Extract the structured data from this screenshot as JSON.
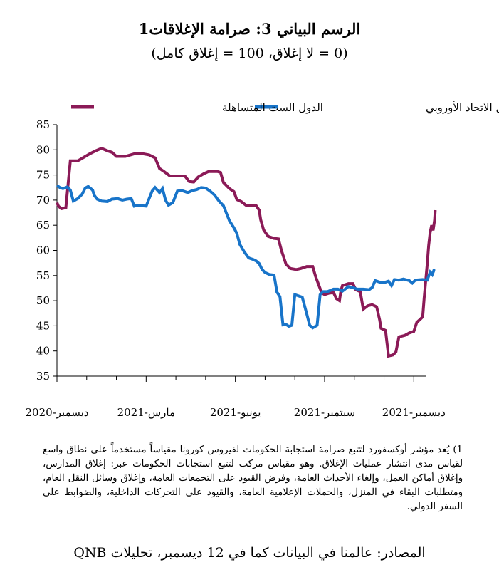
{
  "header": {
    "title": "الرسم البياني 3: صرامة الإغلاقات1",
    "subtitle": "(0 = لا إغلاق، 100 = إغلاق كامل)"
  },
  "chart_data": {
    "type": "line",
    "y_ticks": [
      "85",
      "80",
      "75",
      "70",
      "65",
      "60",
      "55",
      "50",
      "45",
      "40",
      "35"
    ],
    "ylim": [
      35,
      85
    ],
    "x_tick_labels": [
      "ديسمبر-2020",
      "مارس-2021",
      "يونيو-2021",
      "سبتمبر-2021",
      "ديسمبر-2021"
    ],
    "x_tick_months": [
      0,
      3,
      6,
      9,
      12
    ],
    "x_range_months": [
      0,
      12.4
    ],
    "grid": false,
    "legend_position": "top",
    "series": [
      {
        "name": "الدول الست المتساهلة",
        "color": "#8b1a57",
        "points": [
          [
            0,
            69.5
          ],
          [
            0.05,
            68.8
          ],
          [
            0.15,
            68.3
          ],
          [
            0.3,
            68.5
          ],
          [
            0.45,
            77.8
          ],
          [
            0.7,
            77.8
          ],
          [
            0.9,
            78.5
          ],
          [
            1.1,
            79.2
          ],
          [
            1.3,
            79.8
          ],
          [
            1.5,
            80.3
          ],
          [
            1.7,
            79.8
          ],
          [
            1.85,
            79.5
          ],
          [
            2.0,
            78.7
          ],
          [
            2.3,
            78.7
          ],
          [
            2.6,
            79.2
          ],
          [
            2.9,
            79.2
          ],
          [
            3.1,
            79.0
          ],
          [
            3.3,
            78.4
          ],
          [
            3.45,
            76.3
          ],
          [
            3.6,
            75.7
          ],
          [
            3.8,
            74.8
          ],
          [
            4.1,
            74.8
          ],
          [
            4.3,
            74.8
          ],
          [
            4.45,
            73.7
          ],
          [
            4.6,
            73.6
          ],
          [
            4.75,
            74.6
          ],
          [
            4.95,
            75.3
          ],
          [
            5.1,
            75.7
          ],
          [
            5.4,
            75.7
          ],
          [
            5.5,
            75.5
          ],
          [
            5.6,
            73.5
          ],
          [
            5.8,
            72.3
          ],
          [
            5.95,
            71.7
          ],
          [
            6.05,
            70.1
          ],
          [
            6.2,
            69.7
          ],
          [
            6.35,
            69.0
          ],
          [
            6.5,
            68.9
          ],
          [
            6.7,
            68.9
          ],
          [
            6.8,
            68.0
          ],
          [
            6.85,
            66.1
          ],
          [
            6.95,
            64.1
          ],
          [
            7.1,
            62.8
          ],
          [
            7.3,
            62.4
          ],
          [
            7.45,
            62.3
          ],
          [
            7.55,
            60.0
          ],
          [
            7.7,
            57.3
          ],
          [
            7.85,
            56.4
          ],
          [
            8.05,
            56.2
          ],
          [
            8.2,
            56.4
          ],
          [
            8.4,
            56.8
          ],
          [
            8.6,
            56.8
          ],
          [
            8.7,
            54.8
          ],
          [
            8.8,
            53.2
          ],
          [
            8.9,
            51.6
          ],
          [
            9.0,
            51.2
          ],
          [
            9.15,
            51.5
          ],
          [
            9.3,
            51.6
          ],
          [
            9.4,
            50.4
          ],
          [
            9.5,
            50.0
          ],
          [
            9.55,
            52.0
          ],
          [
            9.6,
            53.0
          ],
          [
            9.8,
            53.4
          ],
          [
            9.95,
            53.4
          ],
          [
            10.05,
            52.2
          ],
          [
            10.2,
            51.8
          ],
          [
            10.3,
            48.3
          ],
          [
            10.45,
            49.0
          ],
          [
            10.6,
            49.2
          ],
          [
            10.75,
            48.8
          ],
          [
            10.85,
            46.2
          ],
          [
            10.9,
            44.5
          ],
          [
            11.05,
            44.1
          ],
          [
            11.15,
            39.0
          ],
          [
            11.3,
            39.2
          ],
          [
            11.4,
            39.8
          ],
          [
            11.5,
            42.8
          ],
          [
            11.7,
            43.1
          ],
          [
            11.85,
            43.6
          ],
          [
            12.0,
            43.9
          ],
          [
            12.1,
            45.7
          ],
          [
            12.2,
            46.2
          ],
          [
            12.3,
            46.8
          ],
          [
            12.35,
            50.6
          ],
          [
            12.45,
            57.2
          ],
          [
            12.5,
            61.0
          ],
          [
            12.55,
            63.6
          ],
          [
            12.6,
            65.0
          ],
          [
            12.65,
            64.0
          ],
          [
            12.7,
            66.0
          ],
          [
            12.72,
            68.0
          ]
        ]
      },
      {
        "name": "بقية دول الاتحاد الأوروبي",
        "color": "#1874c9",
        "points": [
          [
            0,
            72.9
          ],
          [
            0.1,
            72.5
          ],
          [
            0.2,
            72.3
          ],
          [
            0.35,
            72.6
          ],
          [
            0.45,
            72.0
          ],
          [
            0.55,
            69.8
          ],
          [
            0.7,
            70.3
          ],
          [
            0.85,
            71.2
          ],
          [
            0.95,
            72.4
          ],
          [
            1.05,
            72.7
          ],
          [
            1.2,
            72.0
          ],
          [
            1.25,
            71.0
          ],
          [
            1.35,
            70.2
          ],
          [
            1.5,
            69.8
          ],
          [
            1.7,
            69.7
          ],
          [
            1.85,
            70.2
          ],
          [
            2.05,
            70.3
          ],
          [
            2.2,
            70.0
          ],
          [
            2.35,
            70.2
          ],
          [
            2.5,
            70.3
          ],
          [
            2.6,
            68.8
          ],
          [
            2.7,
            69.0
          ],
          [
            2.85,
            68.9
          ],
          [
            3.0,
            68.8
          ],
          [
            3.1,
            70.3
          ],
          [
            3.2,
            71.8
          ],
          [
            3.3,
            72.5
          ],
          [
            3.45,
            71.5
          ],
          [
            3.55,
            72.3
          ],
          [
            3.65,
            70.0
          ],
          [
            3.75,
            69.0
          ],
          [
            3.9,
            69.5
          ],
          [
            4.05,
            71.8
          ],
          [
            4.2,
            71.9
          ],
          [
            4.4,
            71.5
          ],
          [
            4.55,
            71.9
          ],
          [
            4.7,
            72.1
          ],
          [
            4.85,
            72.5
          ],
          [
            5.0,
            72.4
          ],
          [
            5.15,
            71.8
          ],
          [
            5.3,
            71.0
          ],
          [
            5.45,
            69.8
          ],
          [
            5.6,
            68.9
          ],
          [
            5.7,
            67.4
          ],
          [
            5.8,
            65.9
          ],
          [
            5.95,
            64.5
          ],
          [
            6.05,
            63.4
          ],
          [
            6.15,
            61.2
          ],
          [
            6.3,
            59.7
          ],
          [
            6.45,
            58.5
          ],
          [
            6.6,
            58.2
          ],
          [
            6.7,
            57.9
          ],
          [
            6.8,
            57.4
          ],
          [
            6.9,
            56.2
          ],
          [
            7.0,
            55.6
          ],
          [
            7.15,
            55.2
          ],
          [
            7.3,
            55.1
          ],
          [
            7.4,
            51.7
          ],
          [
            7.5,
            50.8
          ],
          [
            7.6,
            45.2
          ],
          [
            7.7,
            45.3
          ],
          [
            7.8,
            44.9
          ],
          [
            7.9,
            45.1
          ],
          [
            8.0,
            51.2
          ],
          [
            8.1,
            51.0
          ],
          [
            8.25,
            50.7
          ],
          [
            8.4,
            47.4
          ],
          [
            8.5,
            45.1
          ],
          [
            8.6,
            44.6
          ],
          [
            8.75,
            45.1
          ],
          [
            8.85,
            51.2
          ],
          [
            8.95,
            51.8
          ],
          [
            9.1,
            51.8
          ],
          [
            9.3,
            52.3
          ],
          [
            9.45,
            52.3
          ],
          [
            9.6,
            51.9
          ],
          [
            9.8,
            52.8
          ],
          [
            9.95,
            52.6
          ],
          [
            10.1,
            52.3
          ],
          [
            10.3,
            52.3
          ],
          [
            10.5,
            52.2
          ],
          [
            10.6,
            52.6
          ],
          [
            10.7,
            54.0
          ],
          [
            10.9,
            53.6
          ],
          [
            11.0,
            53.6
          ],
          [
            11.15,
            53.9
          ],
          [
            11.25,
            53.0
          ],
          [
            11.35,
            54.2
          ],
          [
            11.5,
            54.1
          ],
          [
            11.65,
            54.3
          ],
          [
            11.85,
            54.0
          ],
          [
            11.95,
            53.5
          ],
          [
            12.05,
            54.1
          ],
          [
            12.3,
            54.2
          ],
          [
            12.45,
            54.1
          ],
          [
            12.55,
            55.7
          ],
          [
            12.62,
            55.2
          ],
          [
            12.68,
            56.1
          ],
          [
            12.72,
            56.1
          ]
        ]
      }
    ]
  },
  "footnote": "1) يُعد مؤشر أوكسفورد لتتبع صرامة استجابة الحكومات لفيروس كورونا مقياساً مستخدماً على نطاق واسع لقياس مدى انتشار عمليات الإغلاق. وهو مقياس مركب لتتبع استجابات الحكومات عبر: إغلاق المدارس، وإغلاق أماكن العمل، وإلغاء الأحداث العامة، وفرض القيود على التجمعات العامة، وإغلاق وسائل النقل العام، ومتطلبات البقاء في المنزل، والحملات الإعلامية العامة، والقيود على التحركات الداخلية، والضوابط على السفر الدولي.",
  "source": "المصادر: عالمنا في البيانات كما في 12 ديسمبر، تحليلات QNB"
}
